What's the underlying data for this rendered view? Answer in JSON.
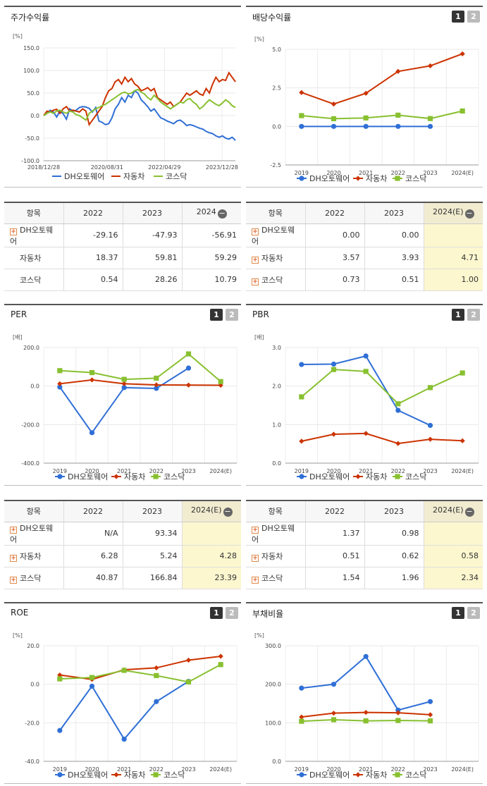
{
  "colors": {
    "dh": "#2f6fd6",
    "auto": "#cc3300",
    "kosdaq": "#88c030"
  },
  "legend": [
    "DH오토웨어",
    "자동차",
    "코스닥"
  ],
  "stock_chart": {
    "title": "주가수익률",
    "unit": "[%]",
    "chart_data": {
      "type": "line",
      "ylim": [
        -100,
        150
      ],
      "yticks": [
        "150.0",
        "100.0",
        "50.0",
        "0.0",
        "-50.0",
        "-100.0"
      ],
      "xticks": [
        "2018/12/28",
        "2020/08/31",
        "2022/04/29",
        "2023/12/28"
      ],
      "n": 60,
      "series": [
        {
          "name": "DH오토웨어",
          "values": [
            0,
            5,
            12,
            8,
            -3,
            10,
            4,
            -8,
            15,
            10,
            12,
            18,
            20,
            19,
            16,
            8,
            18,
            -12,
            -15,
            -20,
            -18,
            -5,
            15,
            25,
            40,
            30,
            45,
            40,
            55,
            50,
            35,
            28,
            20,
            10,
            15,
            5,
            -5,
            -8,
            -12,
            -15,
            -18,
            -12,
            -10,
            -15,
            -22,
            -20,
            -22,
            -25,
            -28,
            -30,
            -35,
            -38,
            -40,
            -45,
            -48,
            -45,
            -50,
            -52,
            -48,
            -55
          ]
        },
        {
          "name": "자동차",
          "values": [
            0,
            10,
            8,
            12,
            14,
            5,
            15,
            20,
            10,
            12,
            10,
            8,
            15,
            10,
            -20,
            -10,
            0,
            10,
            20,
            40,
            55,
            60,
            75,
            80,
            70,
            85,
            75,
            82,
            70,
            65,
            55,
            58,
            62,
            55,
            60,
            40,
            35,
            30,
            25,
            30,
            20,
            25,
            30,
            40,
            50,
            45,
            50,
            55,
            48,
            45,
            60,
            50,
            70,
            85,
            75,
            80,
            78,
            95,
            85,
            75
          ]
        },
        {
          "name": "코스닥",
          "values": [
            0,
            5,
            8,
            5,
            10,
            12,
            8,
            5,
            10,
            8,
            2,
            0,
            -5,
            -10,
            5,
            10,
            15,
            18,
            22,
            25,
            30,
            35,
            40,
            45,
            50,
            52,
            48,
            50,
            55,
            58,
            52,
            48,
            40,
            35,
            45,
            38,
            30,
            25,
            20,
            15,
            20,
            25,
            30,
            28,
            35,
            38,
            30,
            25,
            15,
            20,
            28,
            35,
            30,
            25,
            22,
            28,
            35,
            30,
            22,
            18
          ]
        }
      ]
    }
  },
  "dividend_chart": {
    "title": "배당수익률",
    "unit": "[%]",
    "chart_data": {
      "type": "line",
      "categories": [
        "2019",
        "2020",
        "2021",
        "2022",
        "2023",
        "2024(E)"
      ],
      "ylim": [
        -2.5,
        5.0
      ],
      "yticks": [
        "5.0",
        "2.5",
        "0.0",
        "-2.5"
      ],
      "series": [
        {
          "name": "DH오토웨어",
          "values": [
            0.0,
            0.0,
            0.0,
            0.0,
            0.0,
            null
          ]
        },
        {
          "name": "자동차",
          "values": [
            2.2,
            1.45,
            2.15,
            3.57,
            3.93,
            4.71
          ]
        },
        {
          "name": "코스닥",
          "values": [
            0.7,
            0.5,
            0.55,
            0.73,
            0.51,
            1.0
          ]
        }
      ]
    }
  },
  "per_chart": {
    "title": "PER",
    "unit": "[배]",
    "chart_data": {
      "type": "line",
      "categories": [
        "2019",
        "2020",
        "2021",
        "2022",
        "2023",
        "2024(E)"
      ],
      "ylim": [
        -400,
        200
      ],
      "yticks": [
        "200.0",
        "0.0",
        "-200.0",
        "-400.0"
      ],
      "series": [
        {
          "name": "DH오토웨어",
          "values": [
            -5,
            -242,
            -8,
            -12,
            93.34,
            null
          ]
        },
        {
          "name": "자동차",
          "values": [
            12,
            32,
            12,
            6.28,
            5.24,
            4.28
          ]
        },
        {
          "name": "코스닥",
          "values": [
            80,
            70,
            35,
            40.87,
            166.84,
            23.39
          ]
        }
      ]
    }
  },
  "pbr_chart": {
    "title": "PBR",
    "unit": "[배]",
    "chart_data": {
      "type": "line",
      "categories": [
        "2019",
        "2020",
        "2021",
        "2022",
        "2023",
        "2024(E)"
      ],
      "ylim": [
        0.0,
        3.0
      ],
      "yticks": [
        "3.0",
        "2.0",
        "1.0",
        "0.0"
      ],
      "series": [
        {
          "name": "DH오토웨어",
          "values": [
            2.56,
            2.57,
            2.78,
            1.37,
            0.98,
            null
          ]
        },
        {
          "name": "자동차",
          "values": [
            0.57,
            0.75,
            0.77,
            0.51,
            0.62,
            0.58
          ]
        },
        {
          "name": "코스닥",
          "values": [
            1.72,
            2.43,
            2.38,
            1.54,
            1.96,
            2.34
          ]
        }
      ]
    }
  },
  "roe_chart": {
    "title": "ROE",
    "unit": "[%]",
    "chart_data": {
      "type": "line",
      "categories": [
        "2019",
        "2020",
        "2021",
        "2022",
        "2023",
        "2024(E)"
      ],
      "ylim": [
        -40,
        20
      ],
      "yticks": [
        "20.0",
        "0.0",
        "-20.0",
        "-40.0"
      ],
      "series": [
        {
          "name": "DH오토웨어",
          "values": [
            -24,
            -1,
            -28.5,
            -9,
            1.5,
            null
          ]
        },
        {
          "name": "자동차",
          "values": [
            4.8,
            2.5,
            7.5,
            8.5,
            12.5,
            14.5
          ]
        },
        {
          "name": "코스닥",
          "values": [
            2.8,
            3.5,
            7.2,
            4.5,
            1.2,
            10.2
          ]
        }
      ]
    }
  },
  "debt_chart": {
    "title": "부채비율",
    "unit": "[%]",
    "chart_data": {
      "type": "line",
      "categories": [
        "2019",
        "2020",
        "2021",
        "2022",
        "2023",
        "2024(E)"
      ],
      "ylim": [
        0,
        300
      ],
      "yticks": [
        "300.0",
        "200.0",
        "100.0",
        "0.0"
      ],
      "series": [
        {
          "name": "DH오토웨어",
          "values": [
            190,
            200,
            272,
            133,
            155,
            null
          ]
        },
        {
          "name": "자동차",
          "values": [
            115,
            125,
            127,
            126,
            121,
            null
          ]
        },
        {
          "name": "코스닥",
          "values": [
            104,
            108,
            105,
            106,
            105,
            null
          ]
        }
      ]
    }
  },
  "stock_table": {
    "headers": [
      "항목",
      "2022",
      "2023",
      "2024"
    ],
    "rows": [
      {
        "name": "DH오토웨어",
        "v": [
          "-29.16",
          "-47.93",
          "-56.91"
        ]
      },
      {
        "name": "자동차",
        "v": [
          "18.37",
          "59.81",
          "59.29"
        ]
      },
      {
        "name": "코스닥",
        "v": [
          "0.54",
          "28.26",
          "10.79"
        ]
      }
    ]
  },
  "dividend_table": {
    "headers": [
      "항목",
      "2022",
      "2023",
      "2024(E)"
    ],
    "rows": [
      {
        "name": "DH오토웨어",
        "v": [
          "0.00",
          "0.00",
          ""
        ]
      },
      {
        "name": "자동차",
        "v": [
          "3.57",
          "3.93",
          "4.71"
        ]
      },
      {
        "name": "코스닥",
        "v": [
          "0.73",
          "0.51",
          "1.00"
        ]
      }
    ]
  },
  "per_table": {
    "headers": [
      "항목",
      "2022",
      "2023",
      "2024(E)"
    ],
    "rows": [
      {
        "name": "DH오토웨어",
        "v": [
          "N/A",
          "93.34",
          ""
        ]
      },
      {
        "name": "자동차",
        "v": [
          "6.28",
          "5.24",
          "4.28"
        ]
      },
      {
        "name": "코스닥",
        "v": [
          "40.87",
          "166.84",
          "23.39"
        ]
      }
    ]
  },
  "pbr_table": {
    "headers": [
      "항목",
      "2022",
      "2023",
      "2024(E)"
    ],
    "rows": [
      {
        "name": "DH오토웨어",
        "v": [
          "1.37",
          "0.98",
          ""
        ]
      },
      {
        "name": "자동차",
        "v": [
          "0.51",
          "0.62",
          "0.58"
        ]
      },
      {
        "name": "코스닥",
        "v": [
          "1.54",
          "1.96",
          "2.34"
        ]
      }
    ]
  },
  "pager": [
    "1",
    "2"
  ],
  "minus_icon": "−",
  "plus_icon": "+"
}
